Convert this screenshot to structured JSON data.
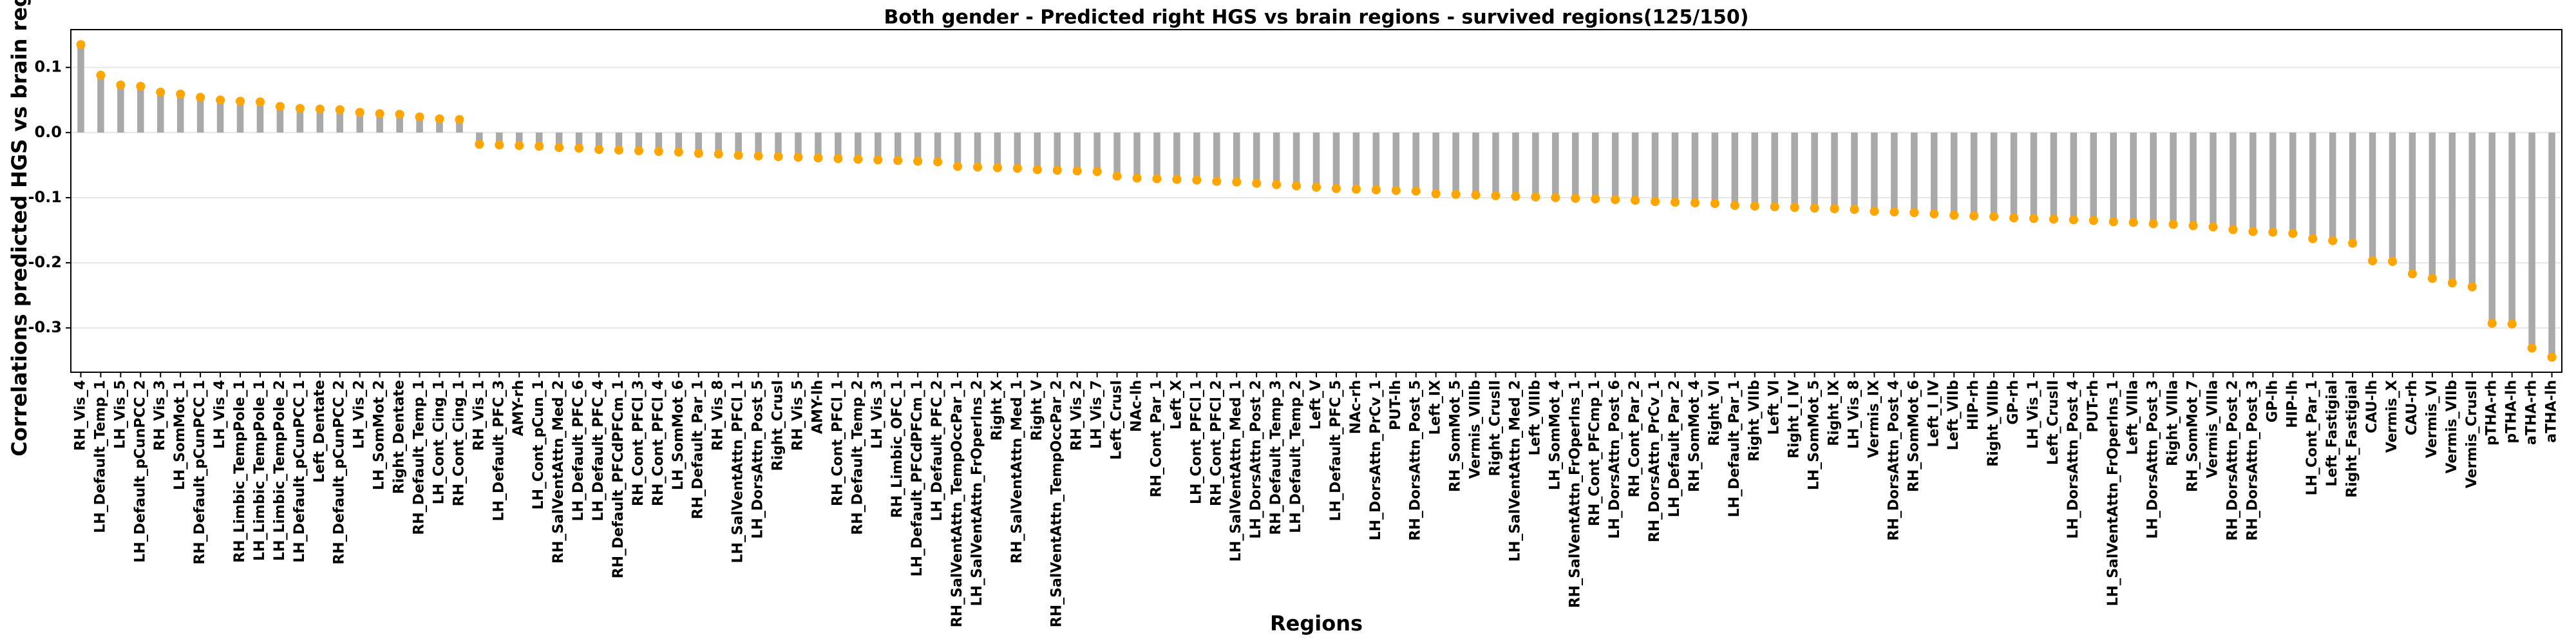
{
  "chart_data": {
    "type": "bar",
    "title": "Both gender - Predicted right HGS vs brain regions - survived regions(125/150)",
    "x_label": "Regions",
    "y_label": "Correlations predicted HGS vs brain regions",
    "categories": [
      "RH_Vis_4",
      "LH_Default_Temp_1",
      "LH_Vis_5",
      "LH_Default_pCunPCC_2",
      "RH_Vis_3",
      "LH_SomMot_1",
      "RH_Default_pCunPCC_1",
      "LH_Vis_4",
      "RH_Limbic_TempPole_1",
      "LH_Limbic_TempPole_1",
      "LH_Limbic_TempPole_2",
      "LH_Default_pCunPCC_1",
      "Left_Dentate",
      "RH_Default_pCunPCC_2",
      "LH_Vis_2",
      "LH_SomMot_2",
      "Right_Dentate",
      "RH_Default_Temp_1",
      "LH_Cont_Cing_1",
      "RH_Cont_Cing_1",
      "RH_Vis_1",
      "LH_Default_PFC_3",
      "AMY-rh",
      "LH_Cont_pCun_1",
      "RH_SalVentAttn_Med_2",
      "LH_Default_PFC_6",
      "LH_Default_PFC_4",
      "RH_Default_PFCdPFCm_1",
      "RH_Cont_PFCl_3",
      "RH_Cont_PFCl_4",
      "LH_SomMot_6",
      "RH_Default_Par_1",
      "RH_Vis_8",
      "LH_SalVentAttn_PFCl_1",
      "LH_DorsAttn_Post_5",
      "Right_CrusI",
      "RH_Vis_5",
      "AMY-lh",
      "RH_Cont_PFCl_1",
      "RH_Default_Temp_2",
      "LH_Vis_3",
      "RH_Limbic_OFC_1",
      "LH_Default_PFCdPFCm_1",
      "LH_Default_PFC_2",
      "RH_SalVentAttn_TempOccPar_1",
      "LH_SalVentAttn_FrOperIns_2",
      "Right_X",
      "RH_SalVentAttn_Med_1",
      "Right_V",
      "RH_SalVentAttn_TempOccPar_2",
      "RH_Vis_2",
      "LH_Vis_7",
      "Left_CrusI",
      "NAc-lh",
      "RH_Cont_Par_1",
      "Left_X",
      "LH_Cont_PFCl_1",
      "RH_Cont_PFCl_2",
      "LH_SalVentAttn_Med_1",
      "LH_DorsAttn_Post_2",
      "RH_Default_Temp_3",
      "LH_Default_Temp_2",
      "Left_V",
      "LH_Default_PFC_5",
      "NAc-rh",
      "LH_DorsAttn_PrCv_1",
      "PUT-lh",
      "RH_DorsAttn_Post_5",
      "Left_IX",
      "RH_SomMot_5",
      "Vermis_VIIIb",
      "Right_CrusII",
      "LH_SalVentAttn_Med_2",
      "Left_VIIIb",
      "LH_SomMot_4",
      "RH_SalVentAttn_FrOperIns_1",
      "RH_Cont_PFCmp_1",
      "LH_DorsAttn_Post_6",
      "RH_Cont_Par_2",
      "RH_DorsAttn_PrCv_1",
      "LH_Default_Par_2",
      "RH_SomMot_4",
      "Right_VI",
      "LH_Default_Par_1",
      "Right_VIIb",
      "Left_VI",
      "Right_I_IV",
      "LH_SomMot_5",
      "Right_IX",
      "LH_Vis_8",
      "Vermis_IX",
      "RH_DorsAttn_Post_4",
      "RH_SomMot_6",
      "Left_I_IV",
      "Left_VIIb",
      "HIP-rh",
      "Right_VIIIb",
      "GP-rh",
      "LH_Vis_1",
      "Left_CrusII",
      "LH_DorsAttn_Post_4",
      "PUT-rh",
      "LH_SalVentAttn_FrOperIns_1",
      "Left_VIIIa",
      "LH_DorsAttn_Post_3",
      "Right_VIIIa",
      "RH_SomMot_7",
      "Vermis_VIIIa",
      "RH_DorsAttn_Post_2",
      "RH_DorsAttn_Post_3",
      "GP-lh",
      "HIP-lh",
      "LH_Cont_Par_1",
      "Left_Fastigial",
      "Right_Fastigial",
      "CAU-lh",
      "Vermis_X",
      "CAU-rh",
      "Vermis_VI",
      "Vermis_VIIb",
      "Vermis_CrusII",
      "pTHA-rh",
      "pTHA-lh",
      "aTHA-rh",
      "aTHA-lh"
    ],
    "values": [
      0.135,
      0.088,
      0.073,
      0.071,
      0.062,
      0.059,
      0.054,
      0.05,
      0.048,
      0.047,
      0.04,
      0.037,
      0.036,
      0.035,
      0.031,
      0.029,
      0.028,
      0.024,
      0.021,
      0.02,
      -0.018,
      -0.019,
      -0.02,
      -0.021,
      -0.023,
      -0.024,
      -0.026,
      -0.027,
      -0.028,
      -0.029,
      -0.03,
      -0.032,
      -0.033,
      -0.035,
      -0.036,
      -0.037,
      -0.038,
      -0.039,
      -0.04,
      -0.041,
      -0.042,
      -0.043,
      -0.044,
      -0.045,
      -0.052,
      -0.053,
      -0.054,
      -0.055,
      -0.057,
      -0.058,
      -0.059,
      -0.06,
      -0.067,
      -0.07,
      -0.071,
      -0.072,
      -0.073,
      -0.075,
      -0.076,
      -0.078,
      -0.08,
      -0.082,
      -0.084,
      -0.086,
      -0.087,
      -0.088,
      -0.089,
      -0.09,
      -0.094,
      -0.095,
      -0.096,
      -0.097,
      -0.098,
      -0.099,
      -0.1,
      -0.101,
      -0.102,
      -0.103,
      -0.104,
      -0.106,
      -0.107,
      -0.108,
      -0.109,
      -0.112,
      -0.113,
      -0.114,
      -0.115,
      -0.116,
      -0.117,
      -0.118,
      -0.121,
      -0.122,
      -0.123,
      -0.125,
      -0.127,
      -0.128,
      -0.129,
      -0.131,
      -0.132,
      -0.133,
      -0.134,
      -0.135,
      -0.137,
      -0.138,
      -0.14,
      -0.141,
      -0.143,
      -0.145,
      -0.149,
      -0.152,
      -0.153,
      -0.155,
      -0.163,
      -0.166,
      -0.17,
      -0.197,
      -0.198,
      -0.217,
      -0.224,
      -0.231,
      -0.237,
      -0.293,
      -0.294,
      -0.331,
      -0.345
    ],
    "color": "#a9a9a9",
    "marker_color": "#ffa500",
    "ylim": [
      -0.368,
      0.158
    ],
    "yticks": [
      -0.3,
      -0.2,
      -0.1,
      {
        "value": 0,
        "label": "0.0"
      },
      0.1
    ],
    "grid": true
  }
}
